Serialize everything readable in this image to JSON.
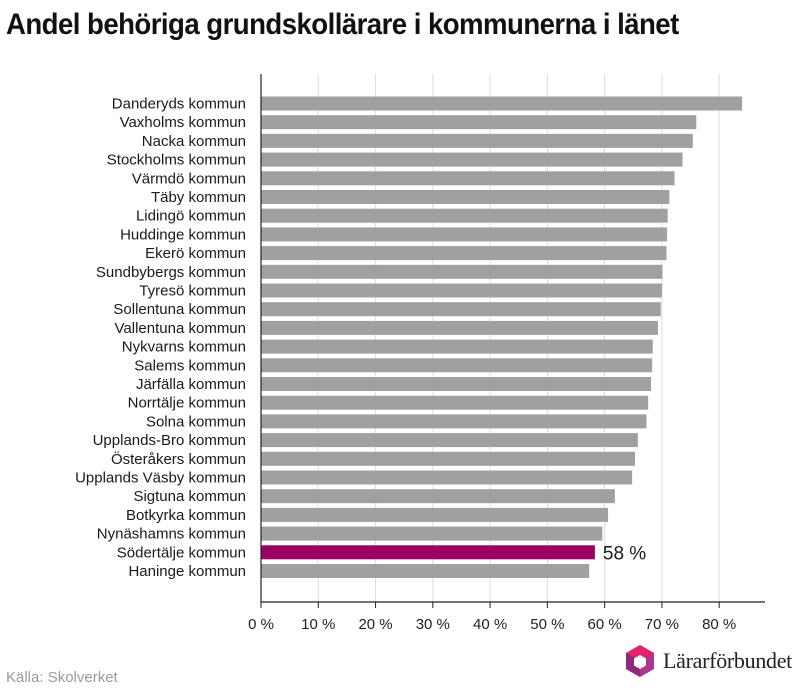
{
  "title": "Andel behöriga grundskollärare i kommunerna i länet",
  "source": "Källa: Skolverket",
  "brand": {
    "name": "Lärarförbundet",
    "mark": "hexagon-logo-icon",
    "colors": [
      "#e3226f",
      "#8e2a7a",
      "#b0348e"
    ]
  },
  "colors": {
    "bar": "#a0a0a0",
    "highlight": "#9c0062",
    "grid": "#dcdcdc",
    "axis": "#222222"
  },
  "chart_data": {
    "type": "bar",
    "orientation": "horizontal",
    "title": "Andel behöriga grundskollärare i kommunerna i länet",
    "xlabel": "",
    "ylabel": "",
    "xlim": [
      0,
      88
    ],
    "x_ticks": [
      0,
      10,
      20,
      30,
      40,
      50,
      60,
      70,
      80
    ],
    "x_tick_suffix": " %",
    "grid": true,
    "categories": [
      "Danderyds kommun",
      "Vaxholms kommun",
      "Nacka kommun",
      "Stockholms kommun",
      "Värmdö kommun",
      "Täby kommun",
      "Lidingö kommun",
      "Huddinge kommun",
      "Ekerö kommun",
      "Sundbybergs kommun",
      "Tyresö kommun",
      "Sollentuna kommun",
      "Vallentuna kommun",
      "Nykvarns kommun",
      "Salems kommun",
      "Järfälla kommun",
      "Norrtälje kommun",
      "Solna kommun",
      "Upplands-Bro kommun",
      "Österåkers kommun",
      "Upplands Väsby kommun",
      "Sigtuna kommun",
      "Botkyrka kommun",
      "Nynäshamns kommun",
      "Södertälje kommun",
      "Haninge kommun"
    ],
    "values": [
      84,
      76,
      75.4,
      73.6,
      72.2,
      71.3,
      71,
      70.9,
      70.8,
      70.1,
      70,
      69.8,
      69.3,
      68.4,
      68.3,
      68.1,
      67.6,
      67.3,
      65.8,
      65.3,
      64.8,
      61.8,
      60.6,
      59.6,
      58.3,
      57.3
    ],
    "highlight": {
      "category": "Södertälje kommun",
      "label": "58 %"
    }
  }
}
